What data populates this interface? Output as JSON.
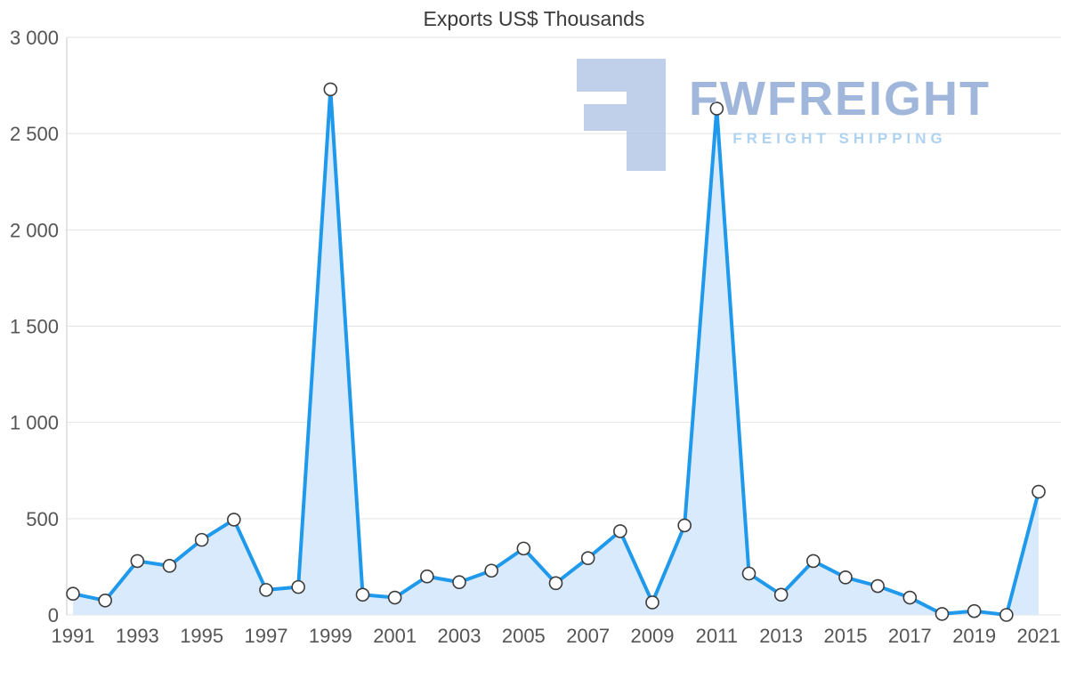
{
  "chart_data": {
    "type": "area",
    "title": "Exports US$ Thousands",
    "x": [
      1991,
      1992,
      1993,
      1994,
      1995,
      1996,
      1997,
      1998,
      1999,
      2000,
      2001,
      2002,
      2003,
      2004,
      2005,
      2006,
      2007,
      2008,
      2009,
      2010,
      2011,
      2012,
      2013,
      2014,
      2015,
      2016,
      2017,
      2018,
      2019,
      2020,
      2021
    ],
    "values": [
      110,
      75,
      280,
      255,
      390,
      495,
      130,
      145,
      2730,
      105,
      90,
      200,
      170,
      230,
      345,
      165,
      295,
      435,
      65,
      465,
      2630,
      215,
      105,
      280,
      195,
      150,
      90,
      5,
      20,
      0,
      640
    ],
    "xlabel": "",
    "ylabel": "",
    "ylim": [
      0,
      3000
    ],
    "y_ticks": [
      0,
      500,
      1000,
      1500,
      2000,
      2500,
      3000
    ],
    "y_tick_labels": [
      "0",
      "500",
      "1 000",
      "1 500",
      "2 000",
      "2 500",
      "3 000"
    ],
    "x_tick_labels": [
      "1991",
      "1993",
      "1995",
      "1997",
      "1999",
      "2001",
      "2003",
      "2005",
      "2007",
      "2009",
      "2011",
      "2013",
      "2015",
      "2017",
      "2019",
      "2021"
    ],
    "x_tick_step": 2,
    "grid": "horizontal",
    "legend": "none",
    "line_color": "#1f99ec",
    "area_color": "#d8eafb",
    "marker_fill": "#ffffff",
    "marker_stroke": "#3c3c3c"
  },
  "watermark": {
    "brand": "FWFREIGHT",
    "tagline": "FREIGHT SHIPPING",
    "logo": "fwfreight-block-f-logo",
    "logo_color": "#b7c9e8",
    "brand_color": "#9bb4da",
    "tagline_color": "#abd0f1"
  }
}
